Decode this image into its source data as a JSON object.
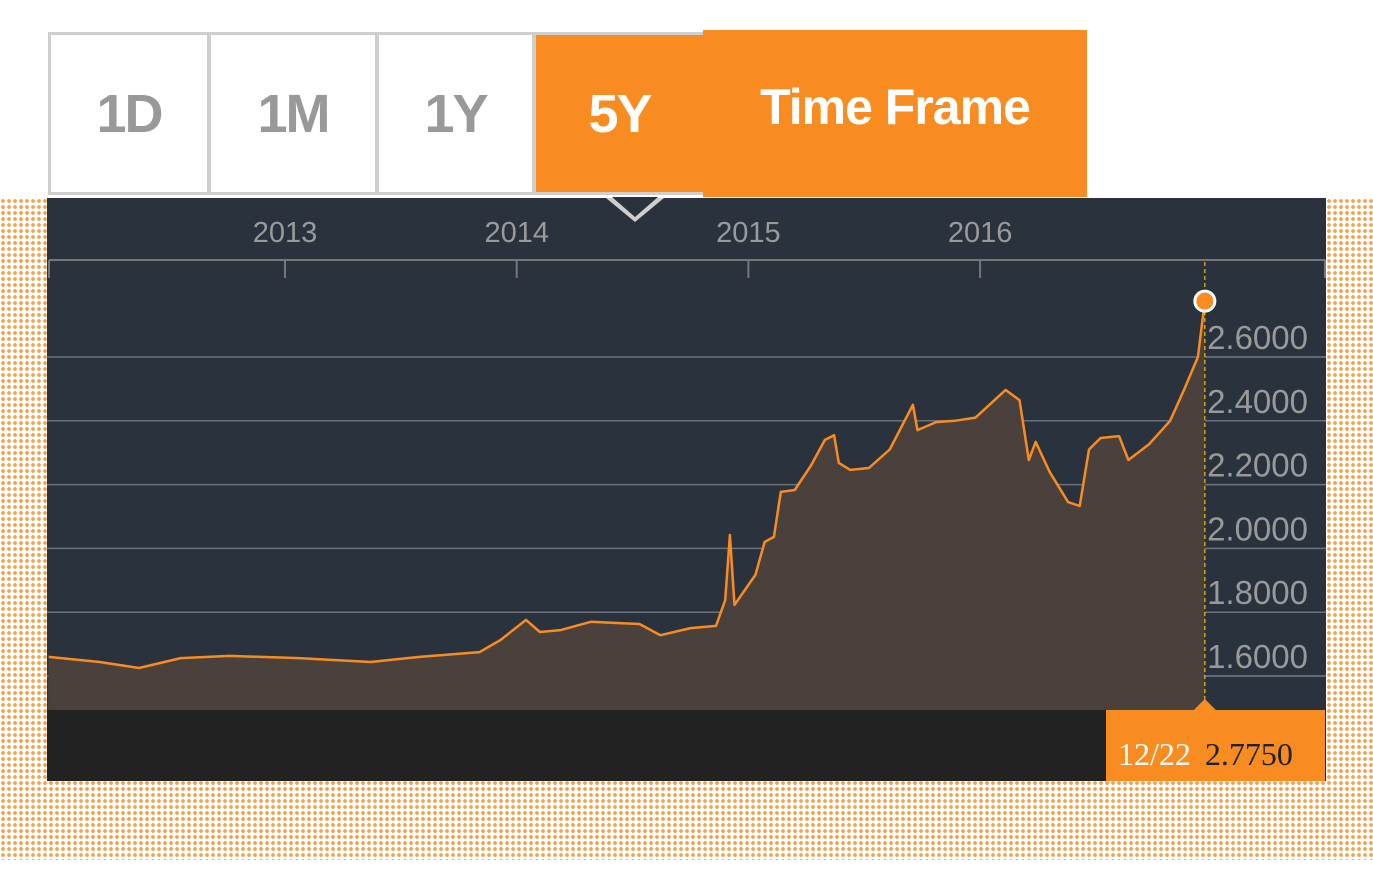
{
  "tabs": [
    {
      "label": "1D",
      "active": false
    },
    {
      "label": "1M",
      "active": false
    },
    {
      "label": "1Y",
      "active": false
    },
    {
      "label": "5Y",
      "active": true
    }
  ],
  "time_frame_label": "Time Frame",
  "colors": {
    "accent": "#f98c20",
    "panel": "#29323d",
    "area": "#4a413d",
    "strip": "#222222"
  },
  "readout": {
    "date": "12/22",
    "value": "2.7750"
  },
  "chart_data": {
    "type": "area",
    "x_ticks": [
      "2013",
      "2014",
      "2015",
      "2016"
    ],
    "y_ticks": [
      "1.6000",
      "1.8000",
      "2.0000",
      "2.2000",
      "2.4000",
      "2.6000"
    ],
    "y_tick_values": [
      1.6,
      1.8,
      2.0,
      2.2,
      2.4,
      2.6
    ],
    "xlim": [
      2011.98,
      2017.5
    ],
    "ylim": [
      1.495,
      2.89
    ],
    "grid": true,
    "x": [
      2011.98,
      2012.2,
      2012.37,
      2012.55,
      2012.76,
      2013.06,
      2013.37,
      2013.58,
      2013.84,
      2013.93,
      2014.04,
      2014.1,
      2014.19,
      2014.32,
      2014.53,
      2014.62,
      2014.75,
      2014.86,
      2014.9,
      2014.92,
      2014.94,
      2015.03,
      2015.07,
      2015.11,
      2015.14,
      2015.2,
      2015.27,
      2015.33,
      2015.37,
      2015.39,
      2015.44,
      2015.52,
      2015.61,
      2015.71,
      2015.73,
      2015.81,
      2015.89,
      2015.98,
      2016.11,
      2016.17,
      2016.21,
      2016.24,
      2016.3,
      2016.38,
      2016.43,
      2016.47,
      2016.52,
      2016.6,
      2016.64,
      2016.73,
      2016.82,
      2016.88,
      2016.94,
      2016.97
    ],
    "y": [
      1.66,
      1.644,
      1.625,
      1.656,
      1.663,
      1.656,
      1.644,
      1.66,
      1.675,
      1.713,
      1.776,
      1.738,
      1.744,
      1.77,
      1.763,
      1.728,
      1.75,
      1.757,
      1.838,
      2.042,
      1.823,
      1.917,
      2.02,
      2.036,
      2.177,
      2.183,
      2.26,
      2.34,
      2.355,
      2.268,
      2.246,
      2.252,
      2.31,
      2.45,
      2.371,
      2.396,
      2.4,
      2.41,
      2.497,
      2.465,
      2.277,
      2.334,
      2.24,
      2.145,
      2.133,
      2.31,
      2.346,
      2.352,
      2.277,
      2.327,
      2.4,
      2.497,
      2.6,
      2.775
    ]
  }
}
